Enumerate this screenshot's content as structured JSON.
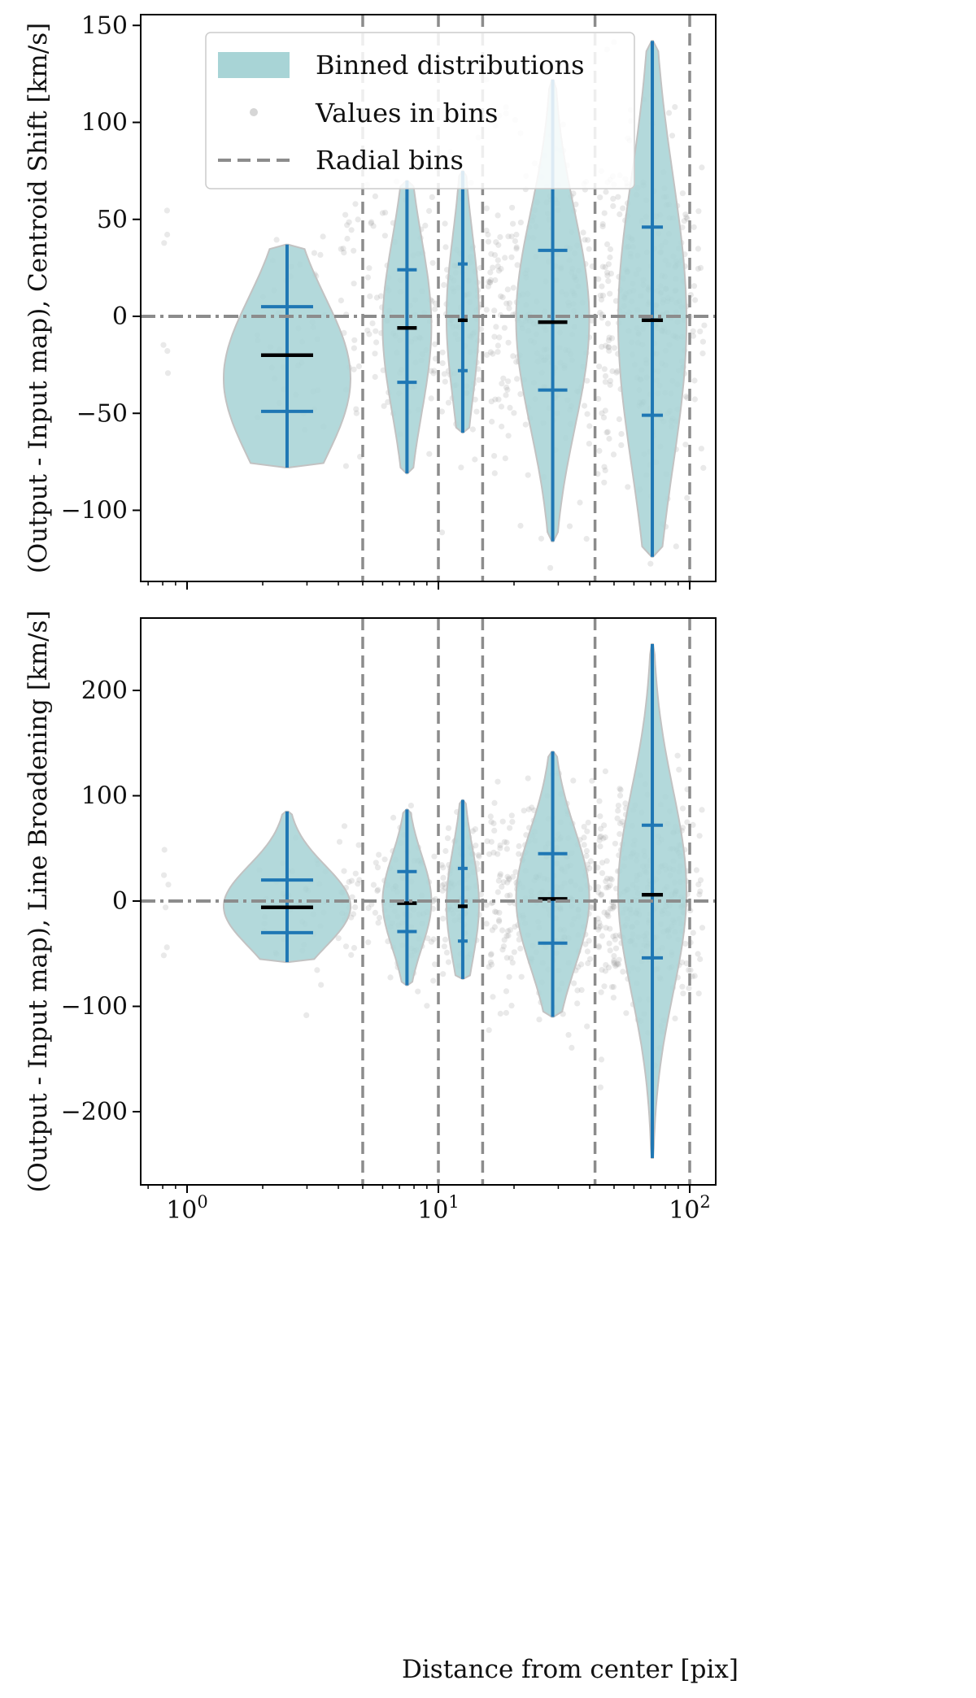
{
  "figure": {
    "xlabel": "Distance from center [pix]",
    "xscale": "log",
    "xlim": [
      0.68,
      130
    ],
    "x_ticks": [
      {
        "value": 1,
        "base": "10",
        "exp": "0"
      },
      {
        "value": 10,
        "base": "10",
        "exp": "1"
      },
      {
        "value": 100,
        "base": "10",
        "exp": "2"
      }
    ],
    "legend": {
      "placement": "upper-left",
      "items": [
        {
          "label": "Binned distributions",
          "kind": "patch",
          "color": "#a8d4d6"
        },
        {
          "label": "Values in bins",
          "kind": "dot",
          "color": "#bbbbbb"
        },
        {
          "label": "Radial bins",
          "kind": "dashed-line",
          "color": "#8c8c8c"
        }
      ]
    },
    "colors": {
      "violin_fill": "#a8d4d6",
      "violin_edge": "#c2c2c2",
      "whisker": "#1f77b4",
      "median": "#000000",
      "scatter": "#9a9a9a",
      "reference_line": "#8c8c8c",
      "bin_edges": "#8c8c8c"
    }
  },
  "chart_data": [
    {
      "type": "violin",
      "panel": "top",
      "title": "",
      "ylabel": "(Output - Input map), Centroid Shift [km/s]",
      "xlabel": "",
      "xscale": "log",
      "xlim": [
        0.68,
        130
      ],
      "ylim": [
        -137,
        156
      ],
      "yticks": [
        150,
        100,
        50,
        0,
        -50,
        -100
      ],
      "ytick_labels": [
        "150",
        "100",
        "50",
        "0",
        "−50",
        "−100"
      ],
      "grid": false,
      "legend": "upper-left",
      "reference_line_y": 0,
      "bin_edges": [
        5,
        10,
        15,
        42,
        100
      ],
      "violins": [
        {
          "x": 2.5,
          "min": -78,
          "max": 37,
          "q1": -49,
          "median": -20,
          "q3": 5
        },
        {
          "x": 7.5,
          "min": -81,
          "max": 70,
          "q1": -34,
          "median": -6,
          "q3": 24
        },
        {
          "x": 12.5,
          "min": -60,
          "max": 75,
          "q1": -28,
          "median": -2,
          "q3": 27
        },
        {
          "x": 28.5,
          "min": -116,
          "max": 122,
          "q1": -38,
          "median": -3,
          "q3": 34
        },
        {
          "x": 71,
          "min": -124,
          "max": 142,
          "q1": -51,
          "median": -2,
          "q3": 46
        }
      ]
    },
    {
      "type": "violin",
      "panel": "bottom",
      "title": "",
      "ylabel": "(Output - Input map), Line Broadening [km/s]",
      "xlabel": "Distance from center [pix]",
      "xscale": "log",
      "xlim": [
        0.68,
        130
      ],
      "ylim": [
        -268,
        268
      ],
      "yticks": [
        200,
        100,
        0,
        -100,
        -200
      ],
      "ytick_labels": [
        "200",
        "100",
        "0",
        "−100",
        "−200"
      ],
      "grid": false,
      "legend": "none",
      "reference_line_y": 0,
      "bin_edges": [
        5,
        10,
        15,
        42,
        100
      ],
      "violins": [
        {
          "x": 2.5,
          "min": -58,
          "max": 85,
          "q1": -30,
          "median": -6,
          "q3": 20
        },
        {
          "x": 7.5,
          "min": -80,
          "max": 87,
          "q1": -29,
          "median": -2,
          "q3": 28
        },
        {
          "x": 12.5,
          "min": -74,
          "max": 96,
          "q1": -38,
          "median": -5,
          "q3": 31
        },
        {
          "x": 28.5,
          "min": -110,
          "max": 142,
          "q1": -40,
          "median": 2,
          "q3": 45
        },
        {
          "x": 71,
          "min": -244,
          "max": 244,
          "q1": -54,
          "median": 6,
          "q3": 72
        }
      ]
    }
  ]
}
